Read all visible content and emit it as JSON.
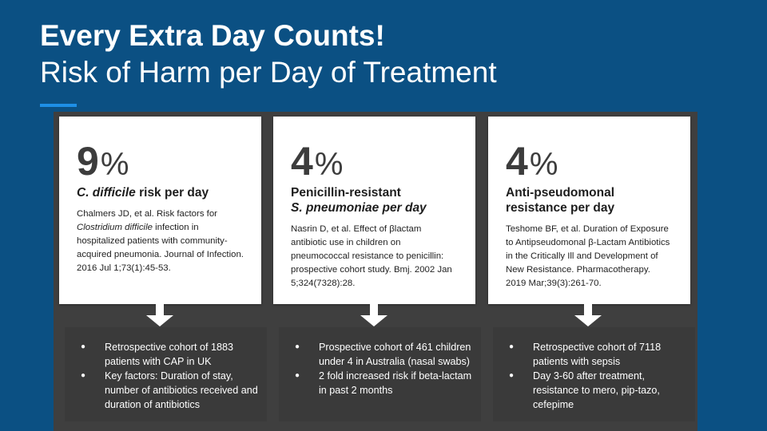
{
  "title": {
    "line1": "Every Extra Day Counts!",
    "line2": "Risk of Harm per Day of Treatment"
  },
  "colors": {
    "background": "#0b5083",
    "accent": "#1e8fe6",
    "panel": "#3a3a3a"
  },
  "cards": [
    {
      "number": "9",
      "unit": "%",
      "heading_italic": "C. difficile",
      "heading_plain": " risk per day",
      "cite_pre": "Chalmers JD, et al. Risk factors for ",
      "cite_italic": "Clostridium difficile",
      "cite_post": " infection in hospitalized patients with community-acquired pneumonia. Journal of Infection. 2016 Jul 1;73(1):45-53.",
      "bullets": [
        "Retrospective cohort of 1883 patients with CAP in UK",
        "Key factors: Duration of stay, number of antibiotics received and duration of antibiotics"
      ]
    },
    {
      "number": "4",
      "unit": "%",
      "heading_line1": "Penicillin-resistant",
      "heading_line2": "S. pneumoniae per day",
      "cite": "Nasrin D, et al. Effect of βlactam antibiotic use in children on pneumococcal resistance to penicillin: prospective cohort study. Bmj. 2002 Jan 5;324(7328):28.",
      "bullets": [
        "Prospective cohort of 461 children under 4 in Australia (nasal swabs)",
        "2 fold increased risk  if beta-lactam in past 2 months"
      ]
    },
    {
      "number": "4",
      "unit": "%",
      "heading_line1": "Anti-pseudomonal",
      "heading_line2": "resistance per day",
      "cite": "Teshome BF, et al. Duration of Exposure to Antipseudomonal β‐Lactam Antibiotics in the Critically Ill and Development of New Resistance. Pharmacotherapy. 2019 Mar;39(3):261-70.",
      "bullets": [
        "Retrospective cohort of 7118 patients with sepsis",
        "Day 3-60 after treatment, resistance to mero, pip-tazo, cefepime"
      ]
    }
  ],
  "bullet_glyph": "●"
}
